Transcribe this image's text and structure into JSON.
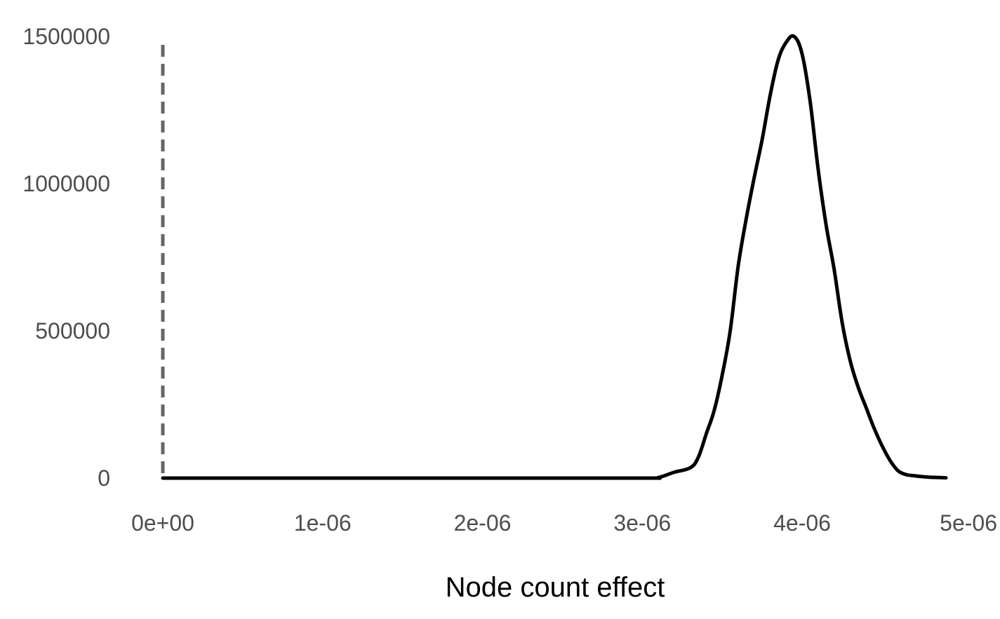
{
  "chart_data": {
    "type": "line",
    "title": "",
    "xlabel": "Node count effect",
    "ylabel": "",
    "xlim": [
      0,
      4.9e-06
    ],
    "ylim": [
      0,
      1500000
    ],
    "x_ticks": [
      {
        "value": 0,
        "label": "0e+00"
      },
      {
        "value": 1e-06,
        "label": "1e-06"
      },
      {
        "value": 2e-06,
        "label": "2e-06"
      },
      {
        "value": 3e-06,
        "label": "3e-06"
      },
      {
        "value": 4e-06,
        "label": "4e-06"
      },
      {
        "value": 5e-06,
        "label": "5e-06"
      }
    ],
    "y_ticks": [
      {
        "value": 0,
        "label": "0"
      },
      {
        "value": 500000,
        "label": "500000"
      },
      {
        "value": 1000000,
        "label": "1000000"
      },
      {
        "value": 1500000,
        "label": "1500000"
      }
    ],
    "grid": false,
    "reference_line": {
      "x": 0,
      "style": "dashed",
      "color": "#666666"
    },
    "series": [
      {
        "color": "#000000",
        "x": [
          0,
          1e-06,
          2e-06,
          3e-06,
          3.1e-06,
          3.2e-06,
          3.3e-06,
          3.35e-06,
          3.4e-06,
          3.45e-06,
          3.5e-06,
          3.55e-06,
          3.6e-06,
          3.65e-06,
          3.7e-06,
          3.75e-06,
          3.8e-06,
          3.85e-06,
          3.9e-06,
          3.95e-06,
          4e-06,
          4.05e-06,
          4.1e-06,
          4.15e-06,
          4.2e-06,
          4.25e-06,
          4.3e-06,
          4.35e-06,
          4.4e-06,
          4.45e-06,
          4.5e-06,
          4.55e-06,
          4.6e-06,
          4.65e-06,
          4.7e-06,
          4.75e-06,
          4.8e-06,
          4.85e-06,
          4.9e-06
        ],
        "values": [
          0,
          0,
          0,
          0,
          2000,
          20000,
          35000,
          70000,
          150000,
          230000,
          350000,
          500000,
          720000,
          880000,
          1020000,
          1150000,
          1300000,
          1420000,
          1480000,
          1500000,
          1440000,
          1280000,
          1050000,
          860000,
          710000,
          530000,
          400000,
          310000,
          240000,
          170000,
          110000,
          60000,
          25000,
          12000,
          8000,
          5000,
          3000,
          2000,
          1000
        ]
      }
    ]
  }
}
